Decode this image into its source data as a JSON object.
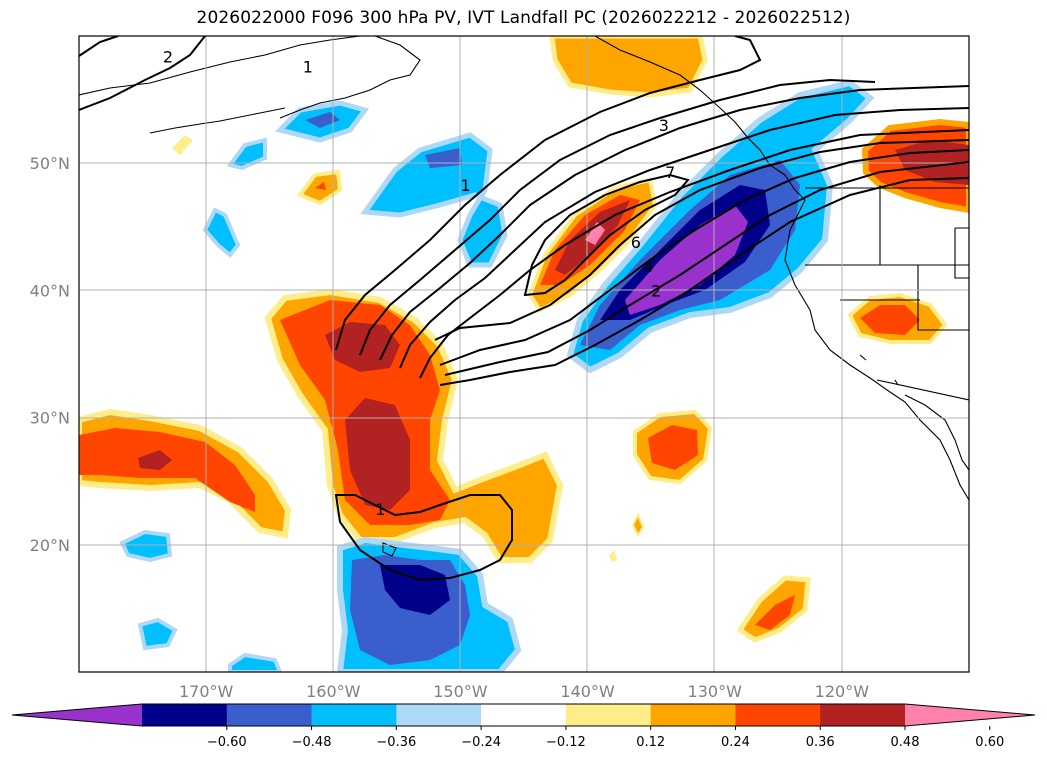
{
  "title": "2026022000 F096 300 hPa PV, IVT Landfall PC (2026022212 - 2026022512)",
  "map": {
    "lon_range": [
      -180,
      -110
    ],
    "lat_range": [
      10,
      60
    ],
    "lon_ticks": [
      {
        "value": -170,
        "label": "170°W"
      },
      {
        "value": -160,
        "label": "160°W"
      },
      {
        "value": -150,
        "label": "150°W"
      },
      {
        "value": -140,
        "label": "140°W"
      },
      {
        "value": -130,
        "label": "130°W"
      },
      {
        "value": -120,
        "label": "120°W"
      }
    ],
    "lat_ticks": [
      {
        "value": 20,
        "label": "20°N"
      },
      {
        "value": 30,
        "label": "30°N"
      },
      {
        "value": 40,
        "label": "40°N"
      },
      {
        "value": 50,
        "label": "50°N"
      }
    ]
  },
  "contour_labels": [
    {
      "text": "2",
      "lon": -173,
      "lat": 58.4
    },
    {
      "text": "1",
      "lon": -162,
      "lat": 57.6
    },
    {
      "text": "3",
      "lon": -134,
      "lat": 53.0
    },
    {
      "text": "7",
      "lon": -133.5,
      "lat": 49.3
    },
    {
      "text": "1",
      "lon": -149.6,
      "lat": 48.3
    },
    {
      "text": "6",
      "lon": -136.2,
      "lat": 43.8
    },
    {
      "text": "4",
      "lon": -135.2,
      "lat": 41.9
    },
    {
      "text": "2",
      "lon": -134.6,
      "lat": 40.0
    },
    {
      "text": "1",
      "lon": -156.3,
      "lat": 22.8
    }
  ],
  "colorbar": {
    "ticks": [
      "−0.60",
      "−0.48",
      "−0.36",
      "−0.24",
      "−0.12",
      "0.12",
      "0.24",
      "0.36",
      "0.48",
      "0.60"
    ],
    "colors": [
      "#9932cc",
      "#00008b",
      "#3a5fcd",
      "#00bfff",
      "#add8f6",
      "#ffffff",
      "#ffed8a",
      "#ffa500",
      "#ff4500",
      "#b22222",
      "#ff82ab"
    ]
  }
}
